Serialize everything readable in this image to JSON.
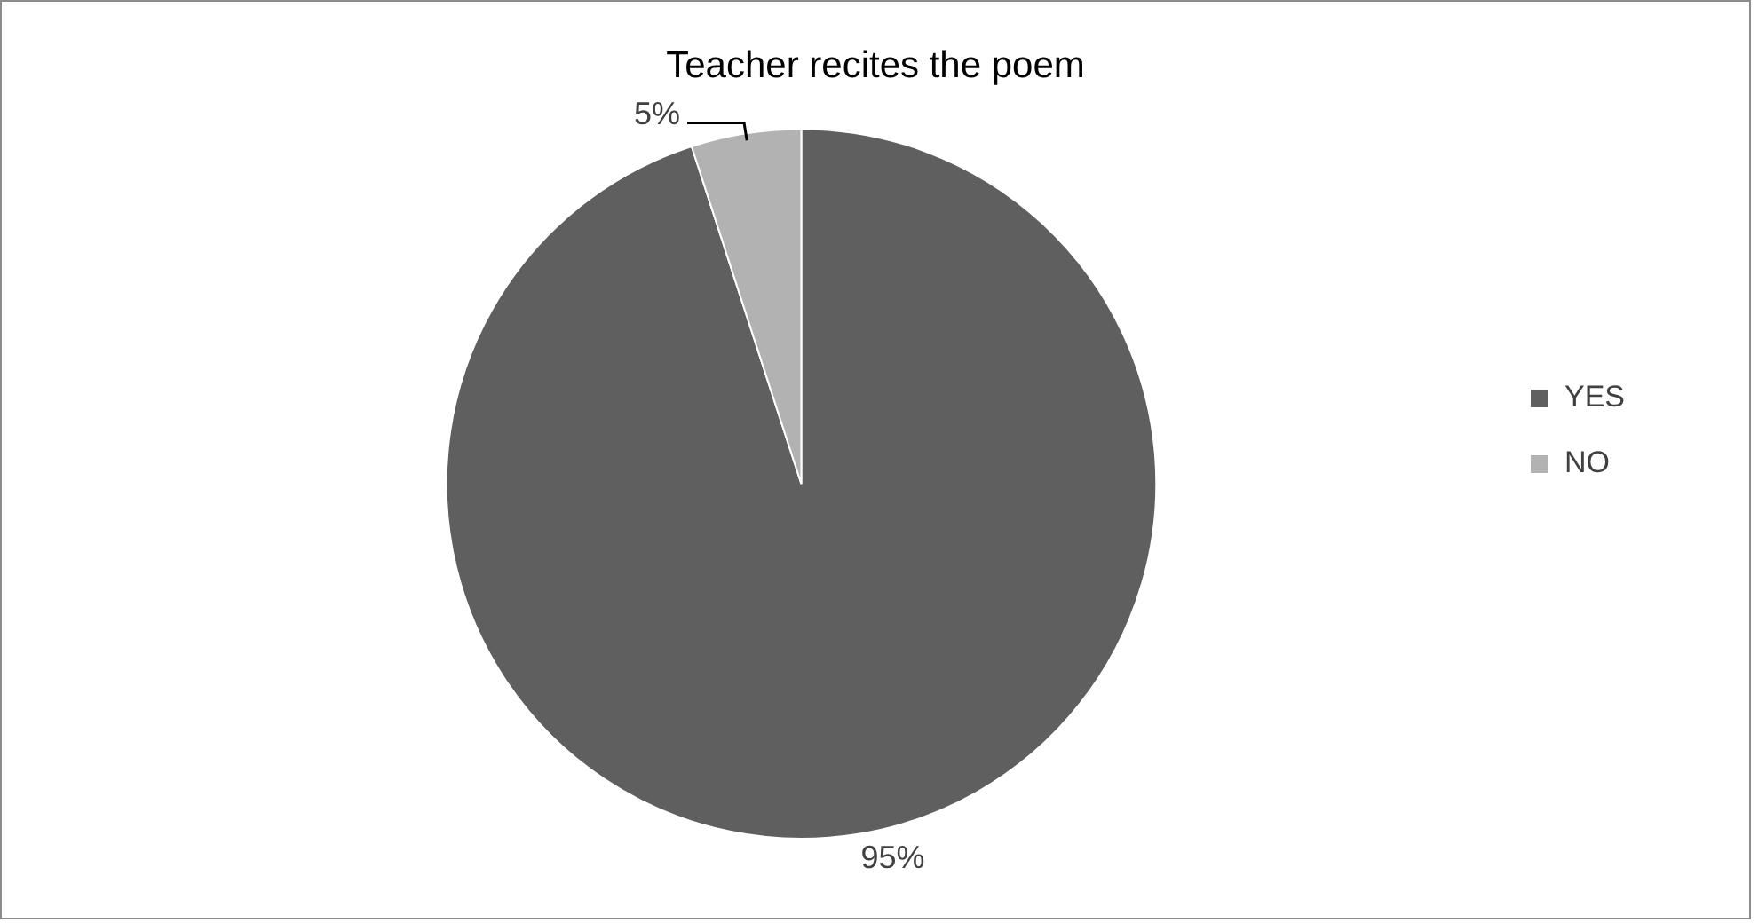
{
  "chart_data": {
    "type": "pie",
    "title": "Teacher recites the poem",
    "categories": [
      "YES",
      "NO"
    ],
    "values": [
      95,
      5
    ],
    "colors": [
      "#5f5f5f",
      "#b2b2b2"
    ],
    "value_labels": [
      "95%",
      "5%"
    ],
    "legend": "right"
  }
}
